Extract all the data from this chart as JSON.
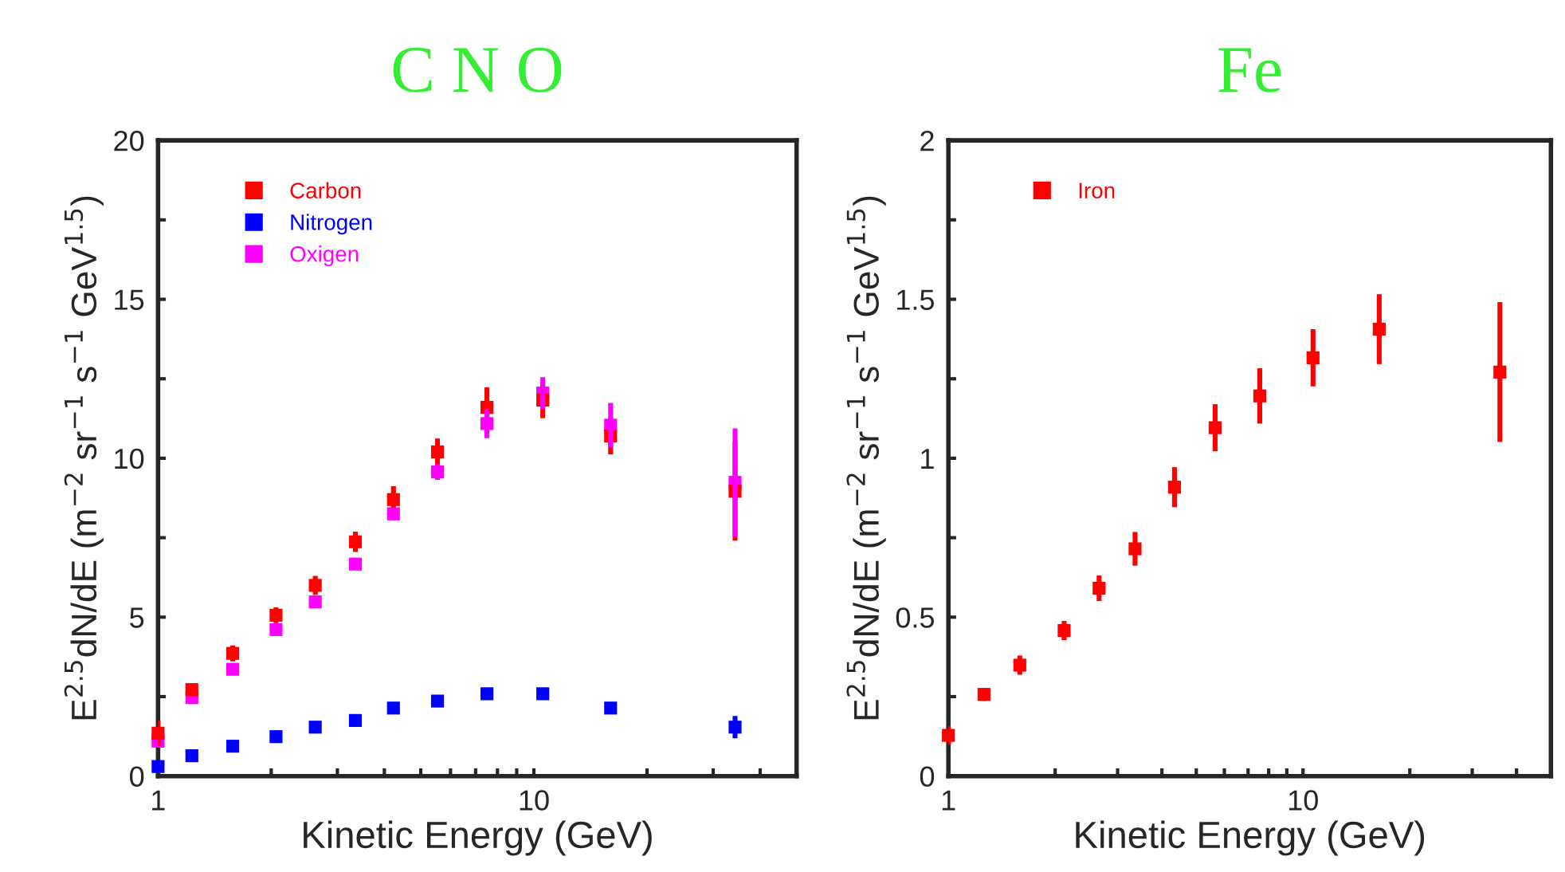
{
  "chart_data": [
    {
      "type": "scatter",
      "title": "C N O",
      "xlabel": "Kinetic Energy (GeV)",
      "ylabel": "E$^{2.5}$dN/dE (m$^{−2}$ sr$^{−1}$ s$^{−1}$ GeV$^{1.5}$)",
      "x": [
        1.0,
        1.23,
        1.58,
        2.06,
        2.62,
        3.35,
        4.23,
        5.54,
        7.5,
        10.56,
        16.0,
        34.3
      ],
      "series": [
        {
          "name": "Carbon",
          "color": "#ff0000",
          "values": [
            1.35,
            2.72,
            3.86,
            5.06,
            6.0,
            7.37,
            8.7,
            10.2,
            11.6,
            11.83,
            10.7,
            8.96
          ],
          "errors": [
            0.4,
            0.2,
            0.25,
            0.25,
            0.3,
            0.32,
            0.42,
            0.42,
            0.63,
            0.57,
            0.58,
            1.55
          ]
        },
        {
          "name": "Nitrogen",
          "color": "#0000ff",
          "values": [
            0.3,
            0.64,
            0.94,
            1.24,
            1.54,
            1.75,
            2.14,
            2.36,
            2.59,
            2.59,
            2.14,
            1.54
          ],
          "errors": [
            null,
            null,
            null,
            null,
            null,
            null,
            null,
            null,
            null,
            null,
            null,
            0.35
          ]
        },
        {
          "name": "Oxigen",
          "color": "#ff00ff",
          "values": [
            1.1,
            2.47,
            3.36,
            4.61,
            5.48,
            6.67,
            8.25,
            9.57,
            11.09,
            12.05,
            11.04,
            9.24
          ],
          "errors": [
            null,
            null,
            null,
            null,
            0.2,
            null,
            0.2,
            0.25,
            0.46,
            0.5,
            0.7,
            1.7
          ]
        }
      ],
      "log": "x",
      "xlim": [
        1,
        50
      ],
      "xticks": [
        1,
        {
          "value": 2,
          "label": null
        },
        {
          "value": 3,
          "label": null
        },
        {
          "value": 4,
          "label": null
        },
        {
          "value": 5,
          "label": null
        },
        {
          "value": 6,
          "label": null
        },
        {
          "value": 7,
          "label": null
        },
        {
          "value": 8,
          "label": null
        },
        {
          "value": 9,
          "label": null
        },
        10,
        {
          "value": 20,
          "label": null
        },
        {
          "value": 30,
          "label": null
        },
        {
          "value": 40,
          "label": null
        }
      ],
      "ylim": [
        0,
        20
      ],
      "yticks": [
        0,
        {
          "value": 2.5,
          "label": null
        },
        5,
        {
          "value": 7.5,
          "label": null
        },
        10,
        {
          "value": 12.5,
          "label": null
        },
        15,
        {
          "value": 17.5,
          "label": null
        },
        20
      ],
      "marker": "square",
      "legend": "top left",
      "grid": false
    },
    {
      "type": "scatter",
      "title": "Fe",
      "xlabel": "Kinetic Energy (GeV)",
      "ylabel": "E$^{2.5}$dN/dE (m$^{−2}$ sr$^{−1}$ s$^{−1}$ GeV$^{1.5}$)",
      "x": [
        1.0,
        1.26,
        1.59,
        2.12,
        2.66,
        3.36,
        4.34,
        5.65,
        7.55,
        10.67,
        16.4,
        35.9
      ],
      "series": [
        {
          "name": "Iron",
          "color": "#ff0000",
          "values": [
            0.128,
            0.257,
            0.349,
            0.458,
            0.591,
            0.715,
            0.909,
            1.096,
            1.196,
            1.316,
            1.406,
            1.271
          ],
          "errors": [
            0.03,
            0.02,
            0.03,
            0.03,
            0.04,
            0.053,
            0.063,
            0.074,
            0.087,
            0.09,
            0.11,
            0.22
          ]
        }
      ],
      "log": "x",
      "xlim": [
        1,
        50
      ],
      "xticks": [
        1,
        {
          "value": 2,
          "label": null
        },
        {
          "value": 3,
          "label": null
        },
        {
          "value": 4,
          "label": null
        },
        {
          "value": 5,
          "label": null
        },
        {
          "value": 6,
          "label": null
        },
        {
          "value": 7,
          "label": null
        },
        {
          "value": 8,
          "label": null
        },
        {
          "value": 9,
          "label": null
        },
        10,
        {
          "value": 20,
          "label": null
        },
        {
          "value": 30,
          "label": null
        },
        {
          "value": 40,
          "label": null
        }
      ],
      "ylim": [
        0,
        2
      ],
      "yticks": [
        0,
        {
          "value": 0.25,
          "label": null
        },
        0.5,
        {
          "value": 0.75,
          "label": null
        },
        1,
        {
          "value": 1.25,
          "label": null
        },
        1.5,
        {
          "value": 1.75,
          "label": null
        },
        2
      ],
      "marker": "square",
      "legend": "top left",
      "grid": false
    }
  ]
}
